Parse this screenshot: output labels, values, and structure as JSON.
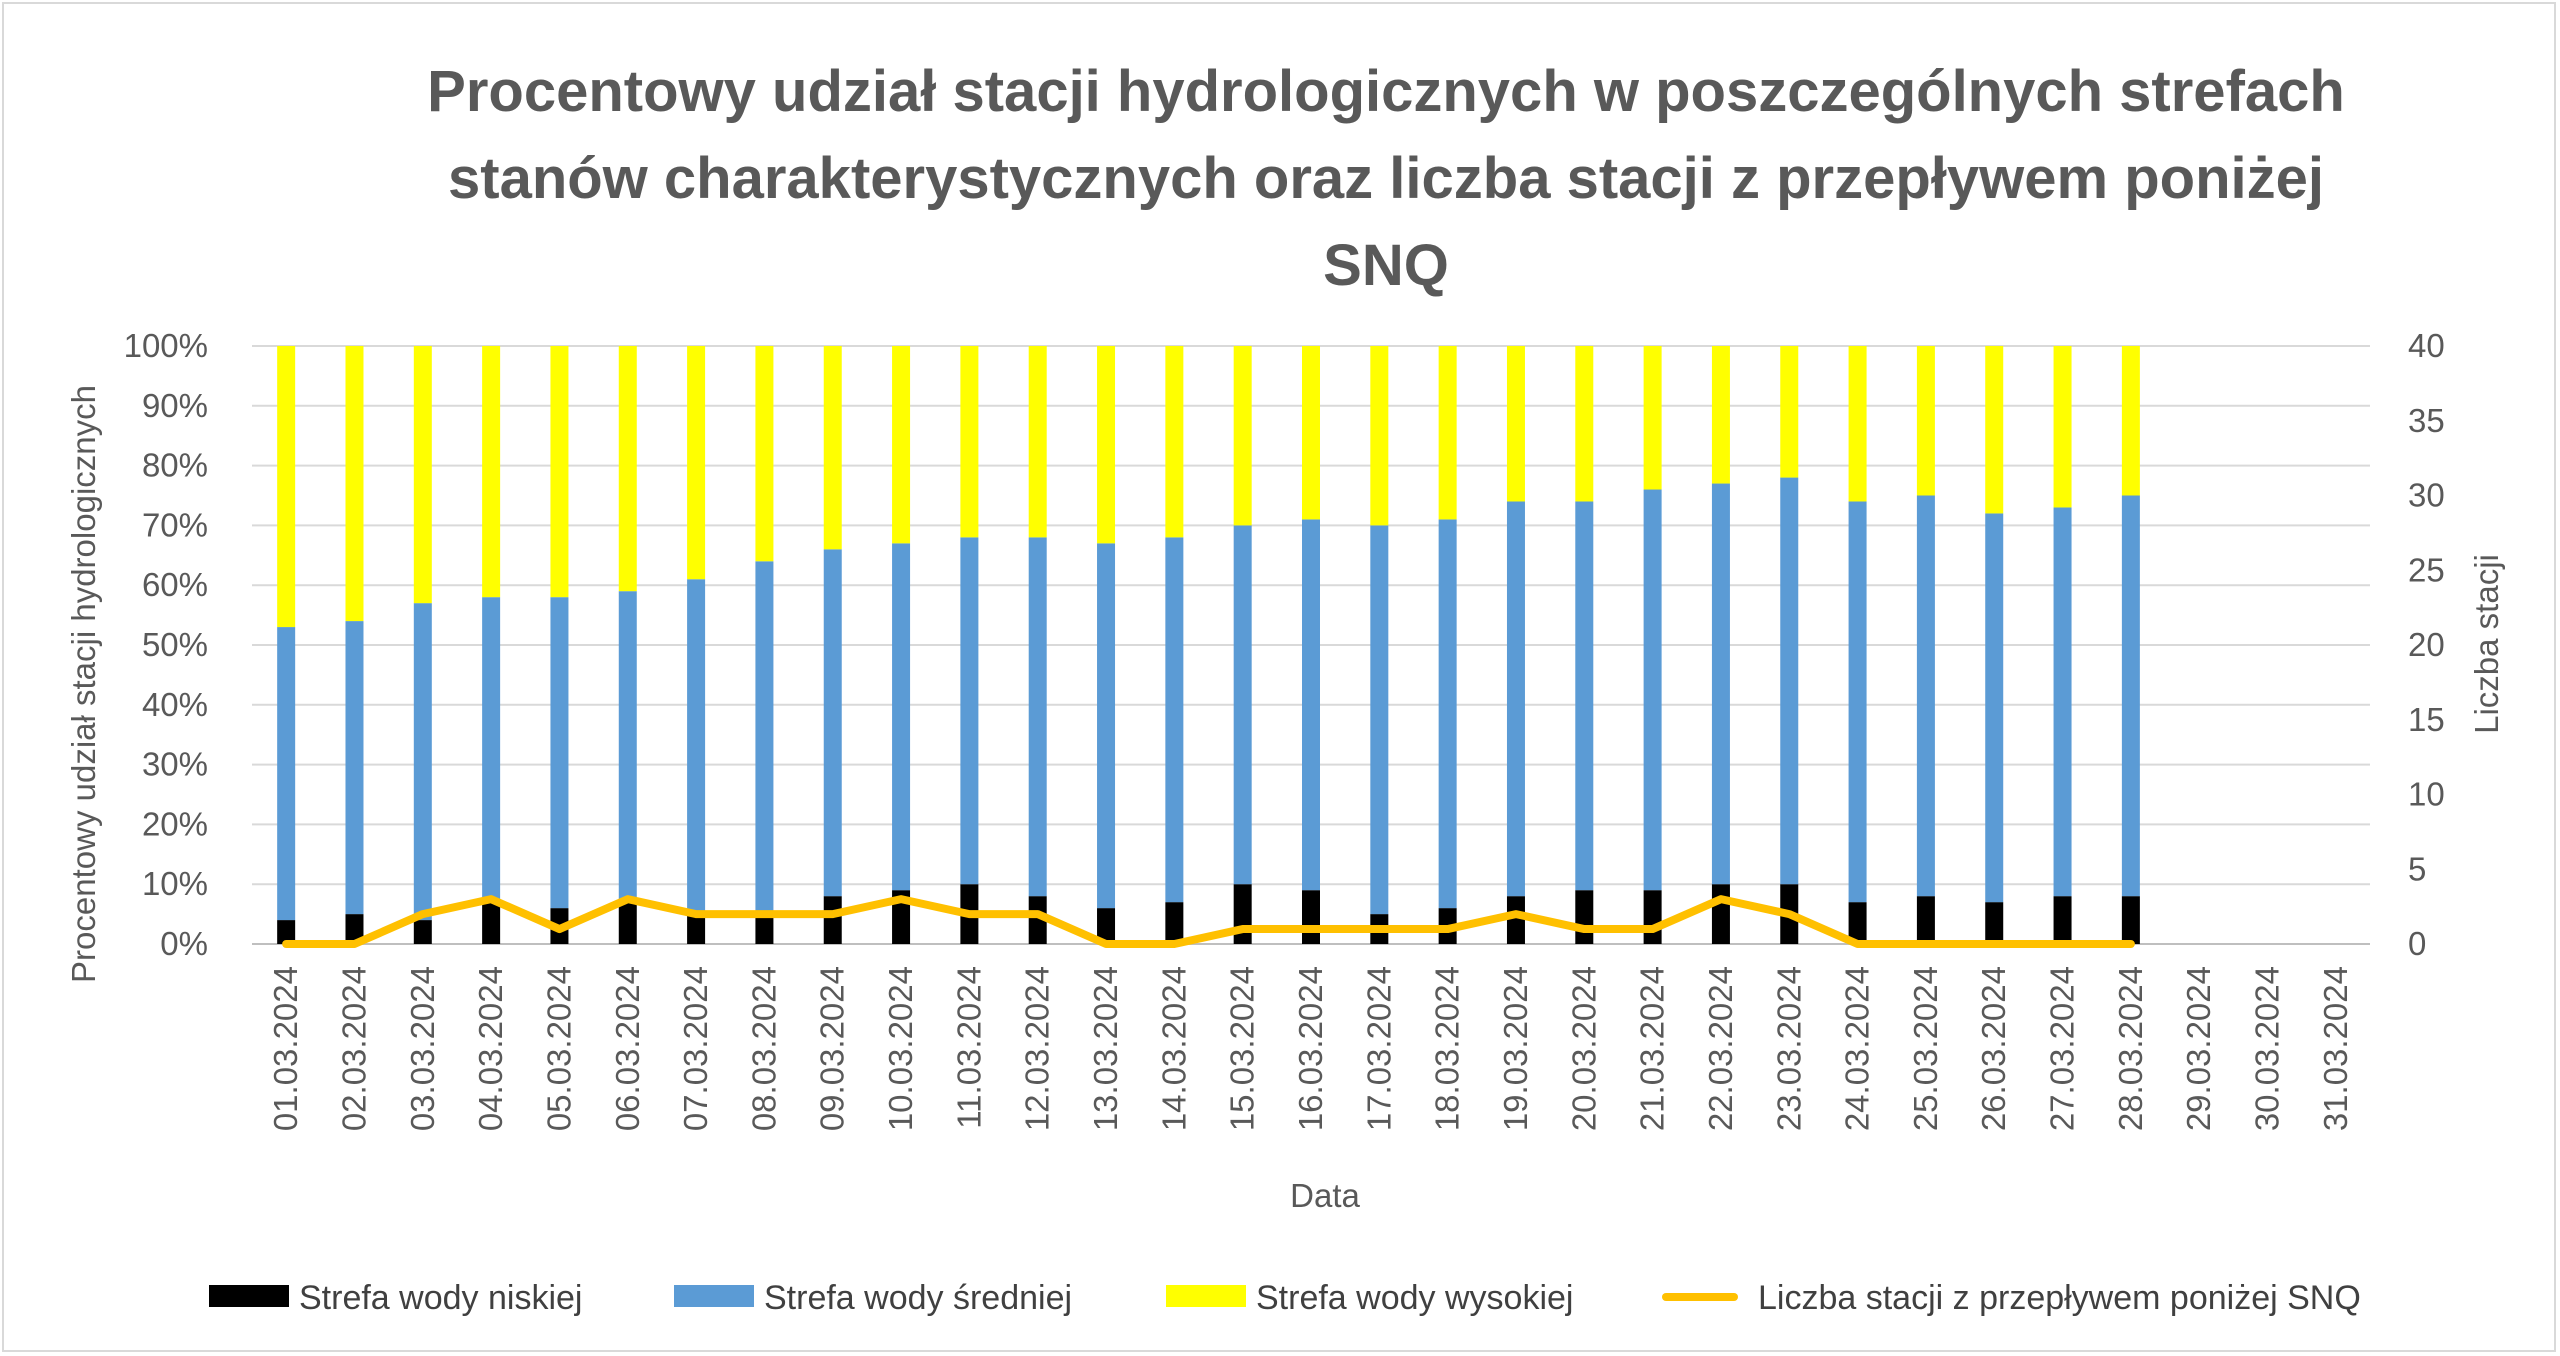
{
  "chart_data": {
    "type": "bar",
    "stacked": true,
    "title_lines": [
      "Procentowy udział stacji hydrologicznych w poszczególnych strefach",
      "stanów charakterystycznych oraz liczba stacji z przepływem poniżej",
      "SNQ"
    ],
    "xlabel": "Data",
    "ylabel": "Procentowy udział stacji hydrologicznych",
    "y2label": "Liczba stacji",
    "ylim": [
      0,
      100
    ],
    "y2lim": [
      0,
      40
    ],
    "y_ticks": [
      "0%",
      "10%",
      "20%",
      "30%",
      "40%",
      "50%",
      "60%",
      "70%",
      "80%",
      "90%",
      "100%"
    ],
    "y2_ticks": [
      "0",
      "5",
      "10",
      "15",
      "20",
      "25",
      "30",
      "35",
      "40"
    ],
    "grid": true,
    "legend_position": "bottom",
    "categories": [
      "01.03.2024",
      "02.03.2024",
      "03.03.2024",
      "04.03.2024",
      "05.03.2024",
      "06.03.2024",
      "07.03.2024",
      "08.03.2024",
      "09.03.2024",
      "10.03.2024",
      "11.03.2024",
      "12.03.2024",
      "13.03.2024",
      "14.03.2024",
      "15.03.2024",
      "16.03.2024",
      "17.03.2024",
      "18.03.2024",
      "19.03.2024",
      "20.03.2024",
      "21.03.2024",
      "22.03.2024",
      "23.03.2024",
      "24.03.2024",
      "25.03.2024",
      "26.03.2024",
      "27.03.2024",
      "28.03.2024",
      "29.03.2024",
      "30.03.2024",
      "31.03.2024"
    ],
    "series": [
      {
        "name": "Strefa wody niskiej",
        "kind": "bar",
        "axis": "left",
        "color": "#000000",
        "values": [
          4,
          5,
          4,
          7,
          6,
          7,
          5,
          5,
          8,
          9,
          10,
          8,
          6,
          7,
          10,
          9,
          5,
          6,
          8,
          9,
          9,
          10,
          10,
          7,
          8,
          7,
          8,
          8,
          null,
          null,
          null
        ]
      },
      {
        "name": "Strefa wody średniej",
        "kind": "bar",
        "axis": "left",
        "color": "#5b9bd5",
        "values": [
          49,
          49,
          53,
          51,
          52,
          52,
          56,
          59,
          58,
          58,
          58,
          60,
          61,
          61,
          60,
          62,
          65,
          65,
          66,
          65,
          67,
          67,
          68,
          67,
          67,
          65,
          65,
          67,
          null,
          null,
          null
        ]
      },
      {
        "name": "Strefa wody wysokiej",
        "kind": "bar",
        "axis": "left",
        "color": "#ffff00",
        "values": [
          47,
          46,
          43,
          42,
          42,
          41,
          39,
          36,
          34,
          33,
          32,
          32,
          33,
          32,
          30,
          29,
          30,
          29,
          26,
          26,
          24,
          23,
          22,
          26,
          25,
          28,
          27,
          25,
          null,
          null,
          null
        ]
      },
      {
        "name": "Liczba stacji z przepływem poniżej SNQ",
        "kind": "line",
        "axis": "right",
        "color": "#ffc000",
        "values": [
          0,
          0,
          2,
          3,
          1,
          3,
          2,
          2,
          2,
          3,
          2,
          2,
          0,
          0,
          1,
          1,
          1,
          1,
          2,
          1,
          1,
          3,
          2,
          0,
          0,
          0,
          0,
          0,
          null,
          null,
          null
        ]
      }
    ]
  }
}
